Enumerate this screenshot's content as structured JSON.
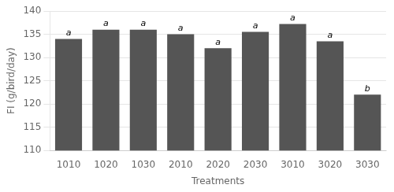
{
  "chart_data": {
    "type": "bar",
    "categories": [
      "1010",
      "1020",
      "1030",
      "2010",
      "2020",
      "2030",
      "3010",
      "3020",
      "3030"
    ],
    "values": [
      134.0,
      136.0,
      136.0,
      135.0,
      132.0,
      135.5,
      137.2,
      133.5,
      122.0
    ],
    "annotations": [
      "a",
      "a",
      "a",
      "a",
      "a",
      "a",
      "a",
      "a",
      "b"
    ],
    "color": "#555555",
    "xlabel": "Treatments",
    "ylabel": "FI (g/bird/day)",
    "ylim": [
      110,
      140
    ],
    "yticks": [
      110,
      115,
      120,
      125,
      130,
      135,
      140
    ],
    "grid": true
  }
}
